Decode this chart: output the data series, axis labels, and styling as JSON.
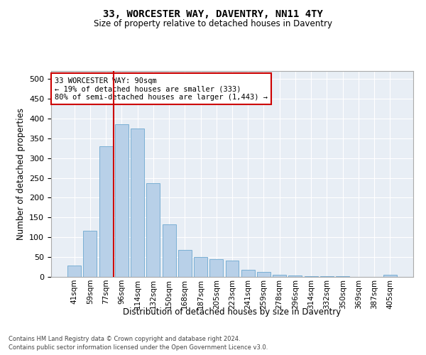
{
  "title1": "33, WORCESTER WAY, DAVENTRY, NN11 4TY",
  "title2": "Size of property relative to detached houses in Daventry",
  "xlabel": "Distribution of detached houses by size in Daventry",
  "ylabel": "Number of detached properties",
  "categories": [
    "41sqm",
    "59sqm",
    "77sqm",
    "96sqm",
    "114sqm",
    "132sqm",
    "150sqm",
    "168sqm",
    "187sqm",
    "205sqm",
    "223sqm",
    "241sqm",
    "259sqm",
    "278sqm",
    "296sqm",
    "314sqm",
    "332sqm",
    "350sqm",
    "369sqm",
    "387sqm",
    "405sqm"
  ],
  "values": [
    28,
    116,
    330,
    385,
    375,
    236,
    133,
    69,
    50,
    45,
    42,
    18,
    13,
    5,
    3,
    2,
    1,
    1,
    0,
    0,
    6
  ],
  "bar_color": "#b8d0e8",
  "bar_edge_color": "#7aafd4",
  "vline_color": "#cc0000",
  "annotation_text": "33 WORCESTER WAY: 90sqm\n← 19% of detached houses are smaller (333)\n80% of semi-detached houses are larger (1,443) →",
  "annotation_box_color": "#ffffff",
  "annotation_box_edge_color": "#cc0000",
  "ylim": [
    0,
    520
  ],
  "yticks": [
    0,
    50,
    100,
    150,
    200,
    250,
    300,
    350,
    400,
    450,
    500
  ],
  "bg_color": "#e8eef5",
  "footnote1": "Contains HM Land Registry data © Crown copyright and database right 2024.",
  "footnote2": "Contains public sector information licensed under the Open Government Licence v3.0."
}
